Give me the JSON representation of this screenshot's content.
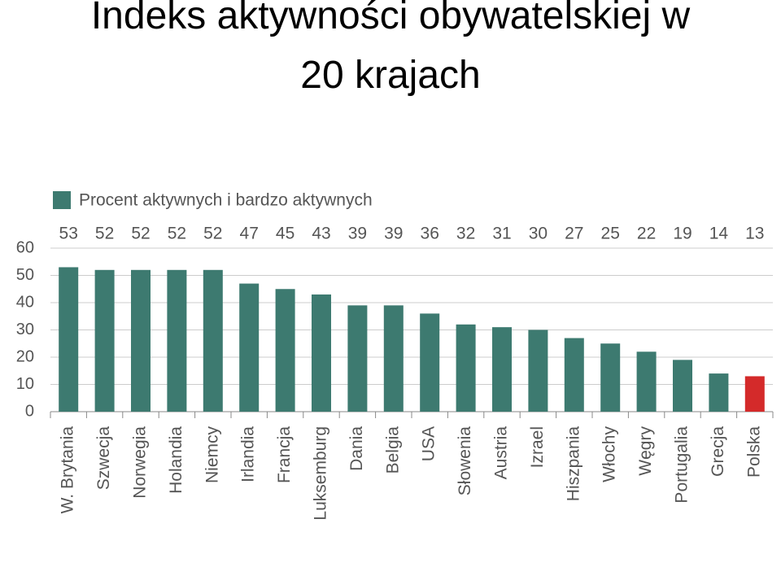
{
  "chart_data": {
    "type": "bar",
    "title": "Indeks aktywności obywatelskiej w 20 krajach",
    "categories": [
      "W. Brytania",
      "Szwecja",
      "Norwegia",
      "Holandia",
      "Niemcy",
      "Irlandia",
      "Francja",
      "Luksemburg",
      "Dania",
      "Belgia",
      "USA",
      "Słowenia",
      "Austria",
      "Izrael",
      "Hiszpania",
      "Włochy",
      "Węgry",
      "Portugalia",
      "Grecja",
      "Polska"
    ],
    "series": [
      {
        "name": "Procent aktywnych i bardzo aktywnych",
        "color": "#3d7a70",
        "values": [
          53,
          52,
          52,
          52,
          52,
          47,
          45,
          43,
          39,
          39,
          36,
          32,
          31,
          30,
          27,
          25,
          22,
          19,
          14,
          13
        ],
        "colors": [
          "#3d7a70",
          "#3d7a70",
          "#3d7a70",
          "#3d7a70",
          "#3d7a70",
          "#3d7a70",
          "#3d7a70",
          "#3d7a70",
          "#3d7a70",
          "#3d7a70",
          "#3d7a70",
          "#3d7a70",
          "#3d7a70",
          "#3d7a70",
          "#3d7a70",
          "#3d7a70",
          "#3d7a70",
          "#3d7a70",
          "#3d7a70",
          "#d42a2a"
        ]
      }
    ],
    "ylim": [
      0,
      60
    ],
    "yticks": [
      0,
      10,
      20,
      30,
      40,
      50,
      60
    ],
    "grid": true
  }
}
